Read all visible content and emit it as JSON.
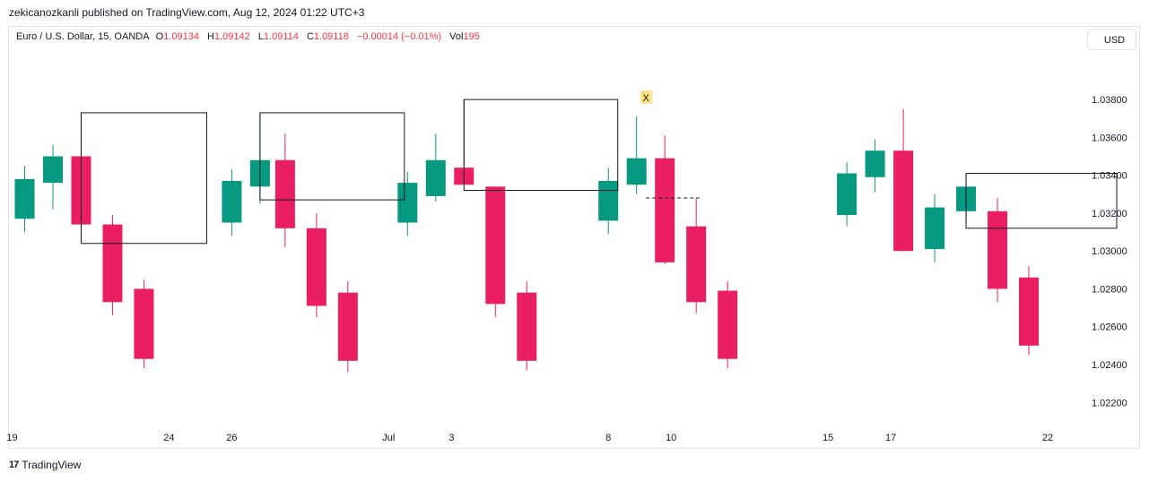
{
  "header": {
    "published": "zekicanozkanli published on TradingView.com, Aug 12, 2024 01:22 UTC+3"
  },
  "legend": {
    "symbol": "Euro / U.S. Dollar, 15, OANDA",
    "o_label": "O",
    "o_value": "1.09134",
    "h_label": "H",
    "h_value": "1.09142",
    "l_label": "L",
    "l_value": "1.09114",
    "c_label": "C",
    "c_value": "1.09118",
    "change": "−0.00014 (−0.01%)",
    "vol_label": "Vol",
    "vol_value": "195"
  },
  "currency_button": "USD",
  "footer": {
    "logo": "17",
    "brand": "TradingView"
  },
  "colors": {
    "up": "#089981",
    "down": "#e91e63",
    "axis_text": "#131722",
    "marker_bg": "#ffe082"
  },
  "chart_data": {
    "type": "candlestick",
    "y_axis": {
      "ticks": [
        1.038,
        1.036,
        1.034,
        1.032,
        1.03,
        1.028,
        1.026,
        1.024,
        1.022
      ],
      "tick_labels": [
        "1.03800",
        "1.03600",
        "1.03400",
        "1.03200",
        "1.03000",
        "1.02800",
        "1.02600",
        "1.02400",
        "1.02200"
      ],
      "range": [
        1.02083,
        1.04056
      ]
    },
    "x_axis": {
      "labels": [
        {
          "text": "19",
          "day": 19
        },
        {
          "text": "24",
          "day": 24
        },
        {
          "text": "26",
          "day": 26
        },
        {
          "text": "Jul",
          "day": 31
        },
        {
          "text": "3",
          "day": 33
        },
        {
          "text": "8",
          "day": 38
        },
        {
          "text": "10",
          "day": 40
        },
        {
          "text": "15",
          "day": 45
        },
        {
          "text": "17",
          "day": 47
        },
        {
          "text": "22",
          "day": 52
        }
      ],
      "range": [
        18.9,
        53.2
      ]
    },
    "candles": [
      {
        "day": 19.4,
        "o": 1.0317,
        "h": 1.0345,
        "l": 1.031,
        "c": 1.0338
      },
      {
        "day": 20.3,
        "o": 1.0336,
        "h": 1.0356,
        "l": 1.0322,
        "c": 1.035
      },
      {
        "day": 21.2,
        "o": 1.035,
        "h": 1.0373,
        "l": 1.0304,
        "c": 1.0314
      },
      {
        "day": 22.2,
        "o": 1.0314,
        "h": 1.0319,
        "l": 1.0266,
        "c": 1.0273
      },
      {
        "day": 23.2,
        "o": 1.028,
        "h": 1.0285,
        "l": 1.0238,
        "c": 1.0243
      },
      {
        "day": 26.0,
        "o": 1.0315,
        "h": 1.0343,
        "l": 1.0308,
        "c": 1.0337
      },
      {
        "day": 26.9,
        "o": 1.0334,
        "h": 1.0373,
        "l": 1.0325,
        "c": 1.0348
      },
      {
        "day": 27.7,
        "o": 1.0348,
        "h": 1.0362,
        "l": 1.0302,
        "c": 1.0312
      },
      {
        "day": 28.7,
        "o": 1.0312,
        "h": 1.032,
        "l": 1.0265,
        "c": 1.0271
      },
      {
        "day": 29.7,
        "o": 1.0278,
        "h": 1.0284,
        "l": 1.0236,
        "c": 1.0242
      },
      {
        "day": 31.6,
        "o": 1.0315,
        "h": 1.0342,
        "l": 1.0308,
        "c": 1.0336
      },
      {
        "day": 32.5,
        "o": 1.0329,
        "h": 1.0362,
        "l": 1.0326,
        "c": 1.0348
      },
      {
        "day": 33.4,
        "o": 1.0344,
        "h": 1.038,
        "l": 1.0335,
        "c": 1.0335
      },
      {
        "day": 34.4,
        "o": 1.0334,
        "h": 1.0334,
        "l": 1.0265,
        "c": 1.0272
      },
      {
        "day": 35.4,
        "o": 1.0278,
        "h": 1.0284,
        "l": 1.0237,
        "c": 1.0242
      },
      {
        "day": 38.0,
        "o": 1.0316,
        "h": 1.0344,
        "l": 1.0309,
        "c": 1.0337
      },
      {
        "day": 38.9,
        "o": 1.0335,
        "h": 1.0371,
        "l": 1.033,
        "c": 1.0349
      },
      {
        "day": 39.8,
        "o": 1.0349,
        "h": 1.0361,
        "l": 1.0293,
        "c": 1.0294
      },
      {
        "day": 40.8,
        "o": 1.0313,
        "h": 1.0328,
        "l": 1.0267,
        "c": 1.0273
      },
      {
        "day": 41.8,
        "o": 1.0279,
        "h": 1.0284,
        "l": 1.0238,
        "c": 1.0243
      },
      {
        "day": 45.6,
        "o": 1.0319,
        "h": 1.0347,
        "l": 1.0313,
        "c": 1.0341
      },
      {
        "day": 46.5,
        "o": 1.0339,
        "h": 1.0359,
        "l": 1.0331,
        "c": 1.0353
      },
      {
        "day": 47.4,
        "o": 1.0353,
        "h": 1.0375,
        "l": 1.03,
        "c": 1.03
      },
      {
        "day": 48.4,
        "o": 1.0301,
        "h": 1.033,
        "l": 1.0294,
        "c": 1.0323
      },
      {
        "day": 49.4,
        "o": 1.0321,
        "h": 1.0341,
        "l": 1.0316,
        "c": 1.0334
      },
      {
        "day": 50.4,
        "o": 1.0321,
        "h": 1.0328,
        "l": 1.0273,
        "c": 1.028
      },
      {
        "day": 51.4,
        "o": 1.0286,
        "h": 1.0292,
        "l": 1.0245,
        "c": 1.025
      }
    ],
    "rectangles": [
      {
        "x1": 21.2,
        "x2": 25.2,
        "y_top": 1.0373,
        "y_bottom": 1.0304
      },
      {
        "x1": 26.9,
        "x2": 31.5,
        "y_top": 1.0373,
        "y_bottom": 1.0327
      },
      {
        "x1": 33.4,
        "x2": 38.3,
        "y_top": 1.038,
        "y_bottom": 1.0332
      },
      {
        "x1": 49.4,
        "x2": 54.2,
        "y_top": 1.0341,
        "y_bottom": 1.0312
      }
    ],
    "dashed_line": {
      "x1": 39.2,
      "x2": 40.9,
      "y": 1.0328
    },
    "marker": {
      "label": "X",
      "day": 39.2,
      "y": 1.0381
    }
  }
}
